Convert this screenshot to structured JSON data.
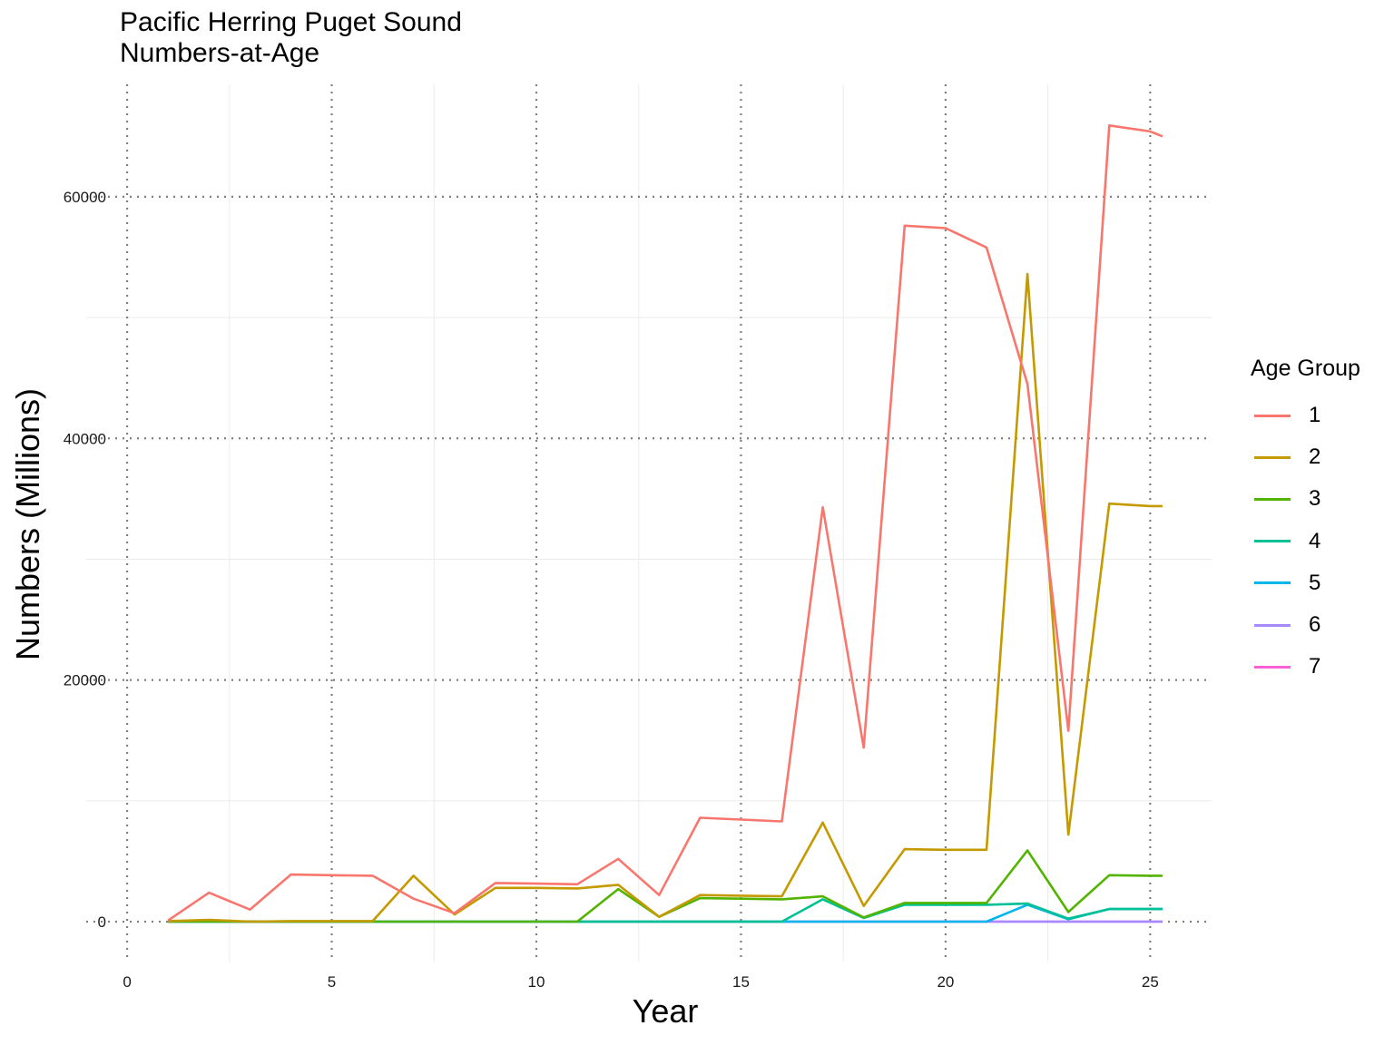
{
  "chart_data": {
    "type": "line",
    "title": "Pacific Herring Puget Sound",
    "subtitle": "Numbers-at-Age",
    "xlabel": "Year",
    "ylabel": "Numbers (Millions)",
    "xlim": [
      -1,
      26.5
    ],
    "ylim": [
      -3300,
      69300
    ],
    "x_ticks": [
      0,
      5,
      10,
      15,
      20,
      25
    ],
    "y_ticks": [
      0,
      20000,
      40000,
      60000
    ],
    "legend_title": "Age Group",
    "legend_position": "right",
    "grid": true,
    "series": [
      {
        "name": "1",
        "color": "#F8766D",
        "x": [
          1,
          2,
          3,
          4,
          5,
          6,
          7,
          8,
          9,
          10,
          11,
          12,
          13,
          14,
          15,
          16,
          17,
          18,
          19,
          20,
          21,
          22,
          23,
          24,
          25,
          25.3
        ],
        "y": [
          100,
          2400,
          1000,
          3900,
          3850,
          3800,
          1900,
          700,
          3200,
          3150,
          3100,
          5200,
          2200,
          8600,
          8450,
          8300,
          34300,
          14400,
          57600,
          57400,
          55800,
          44500,
          15800,
          65900,
          65400,
          65000
        ]
      },
      {
        "name": "2",
        "color": "#C49A00",
        "x": [
          1,
          2,
          3,
          4,
          5,
          6,
          7,
          8,
          9,
          10,
          11,
          12,
          13,
          14,
          15,
          16,
          17,
          18,
          19,
          20,
          21,
          22,
          23,
          24,
          25,
          25.3
        ],
        "y": [
          50,
          150,
          0,
          50,
          50,
          50,
          3800,
          600,
          2800,
          2800,
          2750,
          3050,
          400,
          2200,
          2150,
          2100,
          8200,
          1300,
          6000,
          5950,
          5950,
          53600,
          7200,
          34600,
          34400,
          34400
        ]
      },
      {
        "name": "3",
        "color": "#53B400",
        "x": [
          1,
          2,
          3,
          4,
          5,
          6,
          7,
          8,
          9,
          10,
          11,
          12,
          13,
          14,
          15,
          16,
          17,
          18,
          19,
          20,
          21,
          22,
          23,
          24,
          25,
          25.3
        ],
        "y": [
          0,
          0,
          0,
          0,
          0,
          0,
          0,
          0,
          0,
          0,
          0,
          2700,
          400,
          1950,
          1900,
          1850,
          2100,
          350,
          1550,
          1550,
          1550,
          5900,
          800,
          3850,
          3800,
          3800
        ]
      },
      {
        "name": "4",
        "color": "#00C094",
        "x": [
          1,
          2,
          3,
          4,
          5,
          6,
          7,
          8,
          9,
          10,
          11,
          12,
          13,
          14,
          15,
          16,
          17,
          18,
          19,
          20,
          21,
          22,
          23,
          24,
          25,
          25.3
        ],
        "y": [
          0,
          0,
          0,
          0,
          0,
          0,
          0,
          0,
          0,
          0,
          0,
          0,
          0,
          0,
          0,
          0,
          1850,
          300,
          1400,
          1400,
          1400,
          1500,
          250,
          1050,
          1050,
          1050
        ]
      },
      {
        "name": "5",
        "color": "#00B6EB",
        "x": [
          1,
          2,
          3,
          4,
          5,
          6,
          7,
          8,
          9,
          10,
          11,
          12,
          13,
          14,
          15,
          16,
          17,
          18,
          19,
          20,
          21,
          22,
          23,
          24,
          25,
          25.3
        ],
        "y": [
          0,
          0,
          0,
          0,
          0,
          0,
          0,
          0,
          0,
          0,
          0,
          0,
          0,
          0,
          0,
          0,
          0,
          0,
          0,
          0,
          0,
          1400,
          200,
          1050,
          1050,
          1050
        ]
      },
      {
        "name": "6",
        "color": "#A58AFF",
        "x": [
          1,
          2,
          3,
          4,
          5,
          6,
          7,
          8,
          9,
          10,
          11,
          12,
          13,
          14,
          15,
          16,
          17,
          18,
          19,
          20,
          21,
          22,
          23,
          24,
          25,
          25.3
        ],
        "y": [
          0,
          0,
          0,
          0,
          0,
          0,
          0,
          0,
          0,
          0,
          0,
          0,
          0,
          0,
          0,
          0,
          0,
          0,
          0,
          0,
          0,
          0,
          0,
          0,
          0,
          0
        ]
      },
      {
        "name": "7",
        "color": "#FB61D7",
        "x": [
          1,
          2,
          3,
          4,
          5,
          6,
          7,
          8,
          9,
          10,
          11,
          12,
          13,
          14,
          15,
          16,
          17,
          18,
          19,
          20,
          21,
          22,
          23,
          24,
          25,
          25.3
        ],
        "y": [
          0,
          0,
          0,
          0,
          0,
          0,
          0,
          0,
          0,
          0,
          0,
          0,
          0,
          0,
          0,
          0,
          0,
          0,
          0,
          0,
          0,
          0,
          0,
          0,
          0,
          0
        ]
      }
    ]
  }
}
